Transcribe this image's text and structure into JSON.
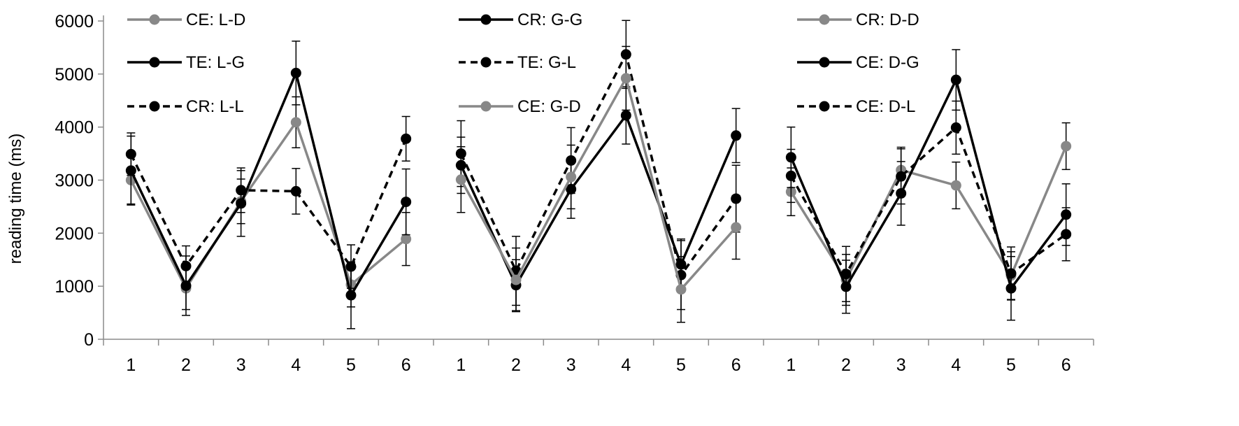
{
  "chart_data": {
    "type": "line",
    "ylabel": "reading time (ms)",
    "ylim": [
      0,
      6000
    ],
    "y_ticks": [
      "0",
      "1000",
      "2000",
      "3000",
      "4000",
      "5000",
      "6000"
    ],
    "grid": false,
    "panels": [
      {
        "categories": [
          "1",
          "2",
          "3",
          "4",
          "5",
          "6"
        ],
        "series": [
          {
            "name": "CE: L-D",
            "color": "#888888",
            "dash": "solid",
            "values": [
              3000,
              960,
              2600,
              4090,
              1030,
              1890
            ],
            "errors": [
              450,
              400,
              420,
              480,
              420,
              500
            ]
          },
          {
            "name": "TE: L-G",
            "color": "#000000",
            "dash": "solid",
            "values": [
              3180,
              1010,
              2560,
              5020,
              830,
              2590
            ],
            "errors": [
              650,
              560,
              620,
              600,
              630,
              620
            ]
          },
          {
            "name": "CR: L-L",
            "color": "#000000",
            "dash": "dashed",
            "values": [
              3490,
              1380,
              2810,
              2790,
              1370,
              3780
            ],
            "errors": [
              400,
              380,
              420,
              430,
              410,
              420
            ]
          }
        ]
      },
      {
        "categories": [
          "1",
          "2",
          "3",
          "4",
          "5",
          "6"
        ],
        "series": [
          {
            "name": "CR: G-G",
            "color": "#000000",
            "dash": "solid",
            "values": [
              3280,
              1020,
              2830,
              4220,
              1410,
              3840
            ],
            "errors": [
              530,
              480,
              550,
              540,
              480,
              510
            ]
          },
          {
            "name": "TE: G-L",
            "color": "#000000",
            "dash": "dashed",
            "values": [
              3500,
              1290,
              3370,
              5370,
              1210,
              2650
            ],
            "errors": [
              620,
              650,
              620,
              640,
              650,
              630
            ]
          },
          {
            "name": "CE: G-D",
            "color": "#888888",
            "dash": "solid",
            "values": [
              3010,
              1120,
              3060,
              4920,
              940,
              2110
            ],
            "errors": [
              620,
              600,
              600,
              600,
              620,
              600
            ]
          }
        ]
      },
      {
        "categories": [
          "1",
          "2",
          "3",
          "4",
          "5",
          "6"
        ],
        "series": [
          {
            "name": "CR: D-D",
            "color": "#888888",
            "dash": "solid",
            "values": [
              2780,
              1120,
              3190,
              2900,
              1200,
              3640
            ],
            "errors": [
              450,
              480,
              430,
              440,
              450,
              440
            ]
          },
          {
            "name": "CE: D-G",
            "color": "#000000",
            "dash": "solid",
            "values": [
              3430,
              990,
              2750,
              4890,
              960,
              2350
            ],
            "errors": [
              570,
              500,
              600,
              570,
              600,
              580
            ]
          },
          {
            "name": "CE: D-L",
            "color": "#000000",
            "dash": "dashed",
            "values": [
              3080,
              1230,
              3070,
              3990,
              1240,
              1980
            ],
            "errors": [
              500,
              520,
              520,
              500,
              500,
              500
            ]
          }
        ]
      }
    ]
  }
}
